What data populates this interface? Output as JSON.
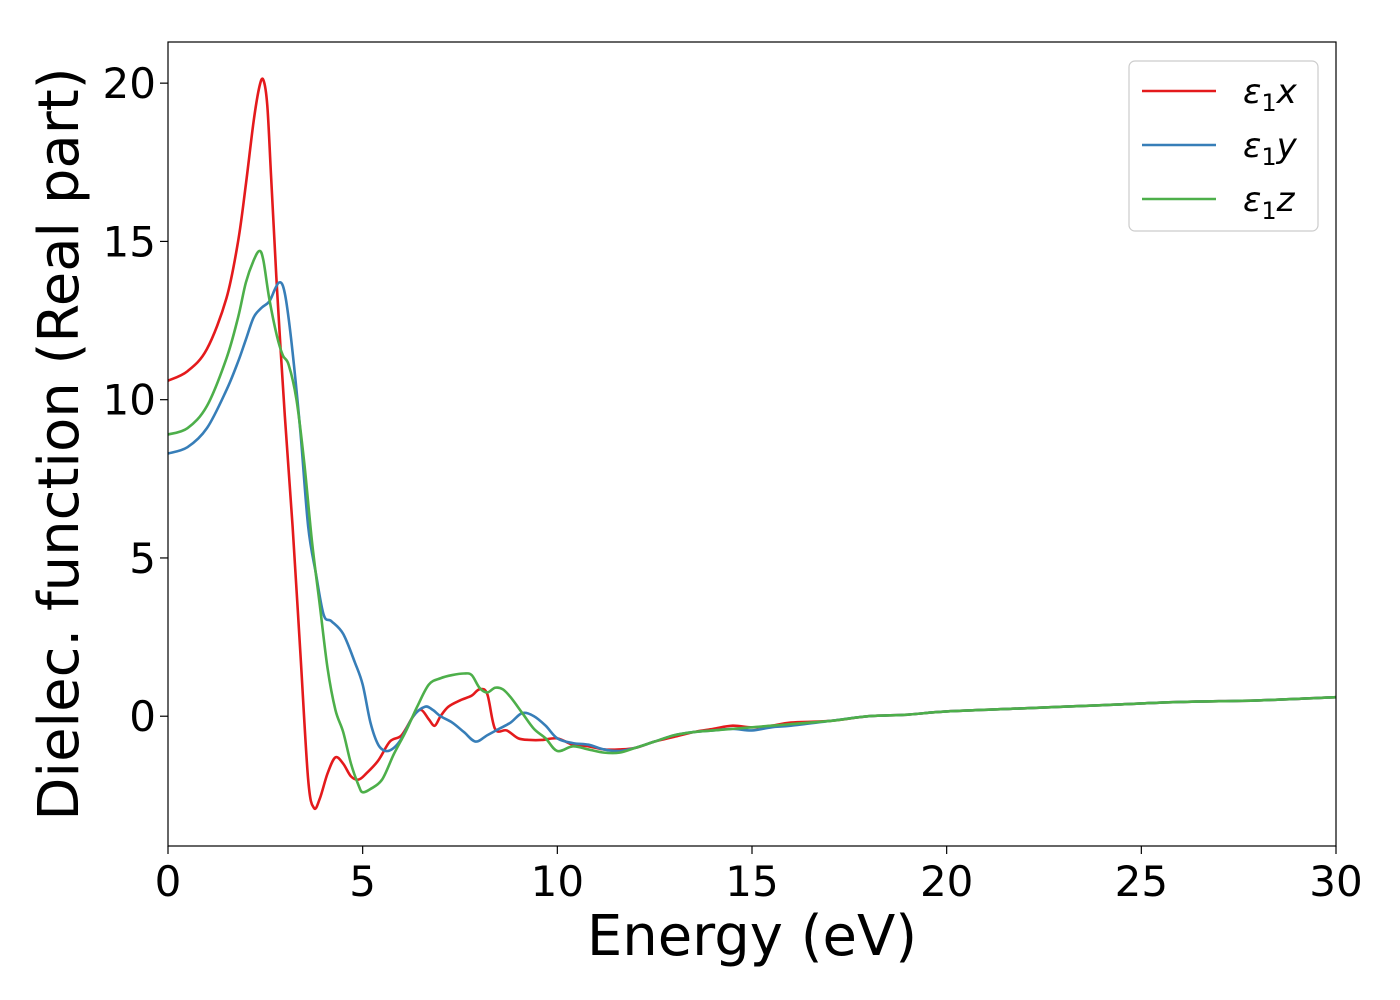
{
  "chart_data": {
    "type": "line",
    "title": "",
    "xlabel": "Energy (eV)",
    "ylabel": "Dielec. function (Real part)",
    "xlim": [
      0,
      30
    ],
    "ylim": [
      -4.1,
      21.3
    ],
    "xticks": [
      0,
      5,
      10,
      15,
      20,
      25,
      30
    ],
    "yticks": [
      0,
      5,
      10,
      15,
      20
    ],
    "grid": false,
    "legend_position": "top-right",
    "series": [
      {
        "name": "ε₁x",
        "legend_base": "ε",
        "legend_sub": "1",
        "legend_suffix": "x",
        "color": "#e41a1c",
        "x": [
          0,
          0.5,
          1.0,
          1.5,
          1.8,
          2.0,
          2.2,
          2.35,
          2.45,
          2.55,
          2.65,
          2.8,
          3.0,
          3.2,
          3.4,
          3.6,
          3.75,
          3.9,
          4.1,
          4.3,
          4.5,
          4.7,
          4.9,
          5.1,
          5.4,
          5.7,
          6.0,
          6.3,
          6.5,
          6.7,
          6.85,
          7.0,
          7.2,
          7.5,
          7.8,
          8.0,
          8.2,
          8.4,
          8.7,
          9.0,
          9.3,
          9.6,
          10.0,
          10.4,
          10.8,
          11.2,
          11.6,
          12.0,
          12.5,
          13.0,
          13.5,
          14.0,
          14.5,
          15.0,
          15.5,
          16.0,
          17.0,
          18.0,
          19.0,
          20.0,
          22.0,
          24.0,
          26.0,
          28.0,
          30.0
        ],
        "values": [
          10.6,
          10.9,
          11.6,
          13.2,
          15.0,
          16.8,
          18.8,
          19.9,
          20.1,
          19.3,
          17.0,
          13.5,
          9.5,
          6.0,
          2.0,
          -2.0,
          -2.9,
          -2.6,
          -1.8,
          -1.3,
          -1.5,
          -1.9,
          -2.0,
          -1.8,
          -1.4,
          -0.8,
          -0.6,
          0.0,
          0.2,
          -0.1,
          -0.3,
          0.0,
          0.3,
          0.5,
          0.65,
          0.85,
          0.7,
          -0.4,
          -0.45,
          -0.7,
          -0.75,
          -0.75,
          -0.7,
          -0.9,
          -0.95,
          -1.05,
          -1.05,
          -1.0,
          -0.8,
          -0.65,
          -0.5,
          -0.4,
          -0.3,
          -0.35,
          -0.3,
          -0.2,
          -0.15,
          0.0,
          0.05,
          0.15,
          0.25,
          0.35,
          0.45,
          0.5,
          0.6
        ]
      },
      {
        "name": "ε₁y",
        "legend_base": "ε",
        "legend_sub": "1",
        "legend_suffix": "y",
        "color": "#377eb8",
        "x": [
          0,
          0.5,
          1.0,
          1.5,
          1.8,
          2.0,
          2.2,
          2.4,
          2.6,
          2.75,
          2.85,
          2.95,
          3.05,
          3.2,
          3.4,
          3.6,
          3.8,
          4.0,
          4.2,
          4.5,
          4.8,
          5.0,
          5.2,
          5.4,
          5.6,
          5.8,
          6.0,
          6.3,
          6.6,
          6.8,
          7.0,
          7.3,
          7.6,
          7.9,
          8.2,
          8.5,
          8.8,
          9.1,
          9.4,
          9.7,
          10.0,
          10.4,
          10.8,
          11.2,
          11.6,
          12.0,
          12.5,
          13.0,
          13.5,
          14.0,
          14.5,
          15.0,
          15.5,
          16.0,
          17.0,
          18.0,
          19.0,
          20.0,
          22.0,
          24.0,
          26.0,
          28.0,
          30.0
        ],
        "values": [
          8.3,
          8.5,
          9.1,
          10.3,
          11.2,
          11.9,
          12.6,
          12.9,
          13.1,
          13.5,
          13.7,
          13.6,
          13.0,
          11.5,
          9.0,
          6.0,
          4.5,
          3.2,
          3.0,
          2.6,
          1.7,
          1.0,
          -0.2,
          -0.9,
          -1.1,
          -1.0,
          -0.7,
          0.0,
          0.3,
          0.2,
          0.0,
          -0.2,
          -0.5,
          -0.8,
          -0.6,
          -0.4,
          -0.2,
          0.1,
          0.0,
          -0.3,
          -0.7,
          -0.85,
          -0.9,
          -1.05,
          -1.1,
          -1.0,
          -0.8,
          -0.6,
          -0.5,
          -0.45,
          -0.4,
          -0.45,
          -0.35,
          -0.3,
          -0.15,
          0.0,
          0.05,
          0.15,
          0.25,
          0.35,
          0.45,
          0.5,
          0.6
        ]
      },
      {
        "name": "ε₁z",
        "legend_base": "ε",
        "legend_sub": "1",
        "legend_suffix": "z",
        "color": "#4daf4a",
        "x": [
          0,
          0.5,
          1.0,
          1.5,
          1.8,
          2.0,
          2.2,
          2.35,
          2.45,
          2.6,
          2.8,
          2.95,
          3.1,
          3.3,
          3.5,
          3.7,
          3.9,
          4.1,
          4.3,
          4.5,
          4.7,
          4.9,
          5.0,
          5.2,
          5.5,
          5.8,
          6.1,
          6.4,
          6.7,
          7.0,
          7.3,
          7.6,
          7.8,
          8.0,
          8.2,
          8.4,
          8.6,
          8.8,
          9.1,
          9.4,
          9.7,
          10.0,
          10.4,
          10.8,
          11.2,
          11.6,
          12.0,
          12.5,
          13.0,
          13.5,
          14.0,
          14.5,
          15.0,
          15.5,
          16.0,
          17.0,
          18.0,
          19.0,
          20.0,
          22.0,
          24.0,
          26.0,
          28.0,
          30.0
        ],
        "values": [
          8.9,
          9.1,
          9.8,
          11.3,
          12.6,
          13.7,
          14.4,
          14.7,
          14.4,
          13.2,
          12.0,
          11.4,
          11.1,
          10.0,
          8.0,
          5.5,
          3.5,
          1.5,
          0.2,
          -0.5,
          -1.5,
          -2.2,
          -2.4,
          -2.3,
          -2.0,
          -1.2,
          -0.5,
          0.3,
          1.0,
          1.2,
          1.3,
          1.35,
          1.3,
          0.9,
          0.75,
          0.9,
          0.85,
          0.6,
          0.1,
          -0.4,
          -0.7,
          -1.1,
          -0.95,
          -1.05,
          -1.15,
          -1.15,
          -1.0,
          -0.8,
          -0.6,
          -0.5,
          -0.45,
          -0.4,
          -0.35,
          -0.3,
          -0.25,
          -0.15,
          0.0,
          0.05,
          0.15,
          0.25,
          0.35,
          0.45,
          0.5,
          0.6
        ]
      }
    ]
  }
}
